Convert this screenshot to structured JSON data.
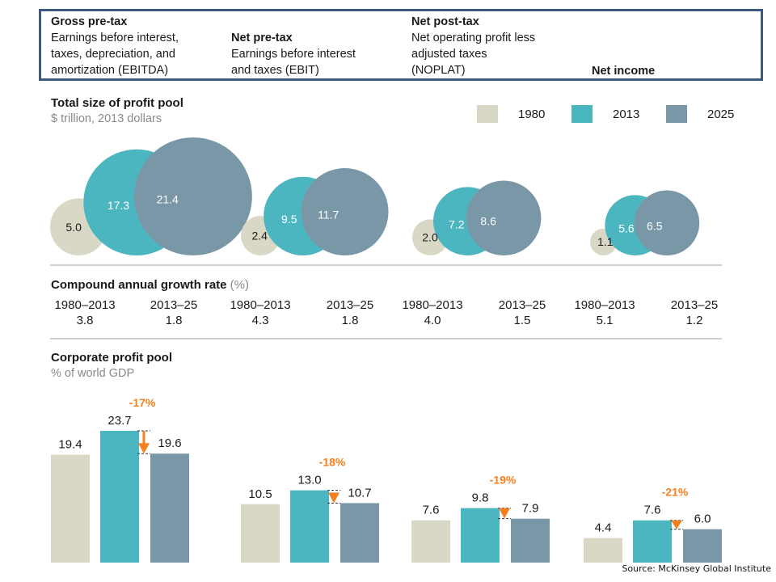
{
  "header": {
    "columns": [
      {
        "title": "Gross pre-tax",
        "desc": [
          "Earnings before interest,",
          "taxes, depreciation, and",
          "amortization (EBITDA)"
        ]
      },
      {
        "title": "Net pre-tax",
        "desc": [
          "Earnings before interest",
          "and taxes (EBIT)"
        ]
      },
      {
        "title": "Net post-tax",
        "desc": [
          "Net operating profit less",
          "adjusted taxes",
          "(NOPLAT)"
        ]
      },
      {
        "title": "Net income",
        "desc": []
      }
    ]
  },
  "colors": {
    "y1980": "#d9d8c6",
    "y2013": "#4bb6c0",
    "y2025": "#7a97a8",
    "accent": "#f4801f",
    "frame": "#3d5a7e"
  },
  "profit_pool": {
    "title": "Total size of profit pool",
    "subtitle": "$ trillion, 2013 dollars"
  },
  "legend": [
    {
      "label": "1980",
      "color": "#d9d8c6"
    },
    {
      "label": "2013",
      "color": "#4bb6c0"
    },
    {
      "label": "2025",
      "color": "#7a97a8"
    }
  ],
  "cagr": {
    "title": "Compound annual growth rate",
    "unit": "(%)",
    "groups": [
      [
        {
          "period": "1980–2013",
          "value": "3.8"
        },
        {
          "period": "2013–25",
          "value": "1.8"
        }
      ],
      [
        {
          "period": "1980–2013",
          "value": "4.3"
        },
        {
          "period": "2013–25",
          "value": "1.8"
        }
      ],
      [
        {
          "period": "1980–2013",
          "value": "4.0"
        },
        {
          "period": "2013–25",
          "value": "1.5"
        }
      ],
      [
        {
          "period": "1980–2013",
          "value": "5.1"
        },
        {
          "period": "2013–25",
          "value": "1.2"
        }
      ]
    ]
  },
  "gdp_pool": {
    "title": "Corporate profit pool",
    "subtitle": "% of world GDP"
  },
  "source": "Source: McKinsey Global Institute",
  "chart_data": [
    {
      "type": "bubble",
      "title": "Total size of profit pool",
      "subtitle": "$ trillion, 2013 dollars",
      "categories": [
        "Gross pre-tax",
        "Net pre-tax",
        "Net post-tax",
        "Net income"
      ],
      "series": [
        {
          "name": "1980",
          "values": [
            5.0,
            2.4,
            2.0,
            1.1
          ]
        },
        {
          "name": "2013",
          "values": [
            17.3,
            9.5,
            7.2,
            5.6
          ]
        },
        {
          "name": "2025",
          "values": [
            21.4,
            11.7,
            8.6,
            6.5
          ]
        }
      ],
      "legend": "top-right"
    },
    {
      "type": "bar",
      "title": "Corporate profit pool",
      "subtitle": "% of world GDP",
      "categories": [
        "Gross pre-tax",
        "Net pre-tax",
        "Net post-tax",
        "Net income"
      ],
      "series": [
        {
          "name": "1980",
          "values": [
            19.4,
            10.5,
            7.6,
            4.4
          ]
        },
        {
          "name": "2013",
          "values": [
            23.7,
            13.0,
            9.8,
            7.6
          ]
        },
        {
          "name": "2025",
          "values": [
            19.6,
            10.7,
            7.9,
            6.0
          ]
        }
      ],
      "annotations": [
        "-17%",
        "-18%",
        "-19%",
        "-21%"
      ],
      "ylim": [
        0,
        24
      ]
    }
  ]
}
